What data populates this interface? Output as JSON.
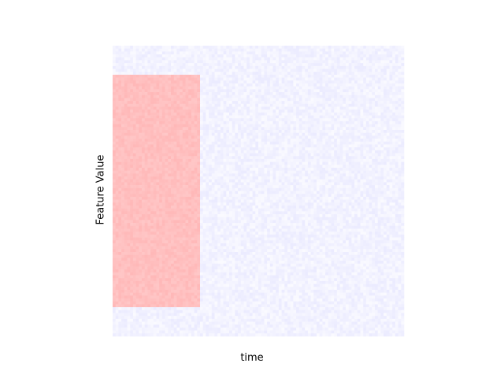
{
  "chart_data": {
    "type": "heatmap",
    "title": "",
    "xlabel": "time",
    "ylabel": "Feature Value",
    "xticks": [],
    "yticks": [],
    "grid": false,
    "legend": "none",
    "colormap": "bwr",
    "grid_size": [
      100,
      100
    ],
    "background_value": -0.05,
    "noise_amplitude": 0.03,
    "region": {
      "x_range": [
        0,
        30
      ],
      "y_range": [
        10,
        90
      ],
      "value": 0.25
    },
    "colors": {
      "low": "#0000ff",
      "mid": "#ffffff",
      "high": "#ff0000"
    }
  }
}
